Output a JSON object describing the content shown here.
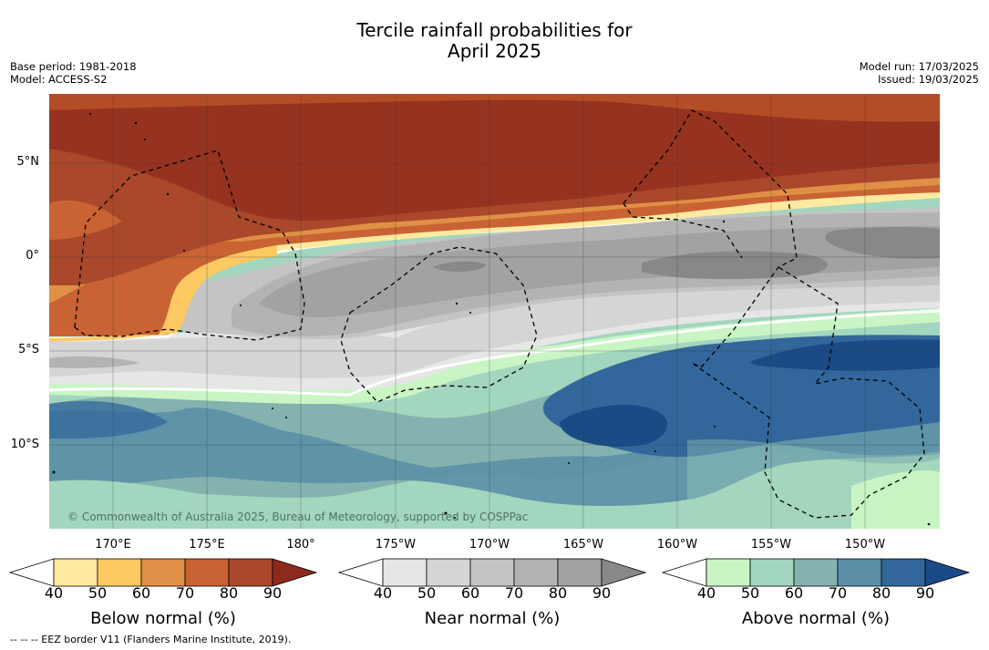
{
  "title": {
    "line1": "Tercile rainfall probabilities for",
    "line2": "April 2025"
  },
  "meta_left": {
    "base_period": "Base period: 1981-2018",
    "model": "Model: ACCESS-S2"
  },
  "meta_right": {
    "model_run": "Model run: 17/03/2025",
    "issued": "Issued: 19/03/2025"
  },
  "map": {
    "copyright": "© Commonwealth of Australia 2025, Bureau of Meteorology, supported by COSPPac",
    "lat_labels": [
      "5°N",
      "0°",
      "5°S",
      "10°S"
    ],
    "lon_labels": [
      "170°E",
      "175°E",
      "180°",
      "175°W",
      "170°W",
      "165°W",
      "160°W",
      "155°W",
      "150°W"
    ]
  },
  "colorbars": [
    {
      "title": "Below normal (%)",
      "ticks": [
        "40",
        "50",
        "60",
        "70",
        "80",
        "90"
      ],
      "colors": [
        "#ffeaa0",
        "#fdc962",
        "#e09046",
        "#c96333",
        "#a9482b",
        "#8b2a1d"
      ]
    },
    {
      "title": "Near normal (%)",
      "ticks": [
        "40",
        "50",
        "60",
        "70",
        "80",
        "90"
      ],
      "colors": [
        "#e6e6e6",
        "#d5d5d5",
        "#c4c4c4",
        "#b3b3b3",
        "#a2a2a2",
        "#888888"
      ]
    },
    {
      "title": "Above normal (%)",
      "ticks": [
        "40",
        "50",
        "60",
        "70",
        "80",
        "90"
      ],
      "colors": [
        "#c9f5c5",
        "#a3d6be",
        "#84b3af",
        "#5b8fa7",
        "#33679b",
        "#1a4b86"
      ]
    }
  ],
  "footer": "--  --  -- EEZ border V11 (Flanders Marine Institute, 2019)."
}
